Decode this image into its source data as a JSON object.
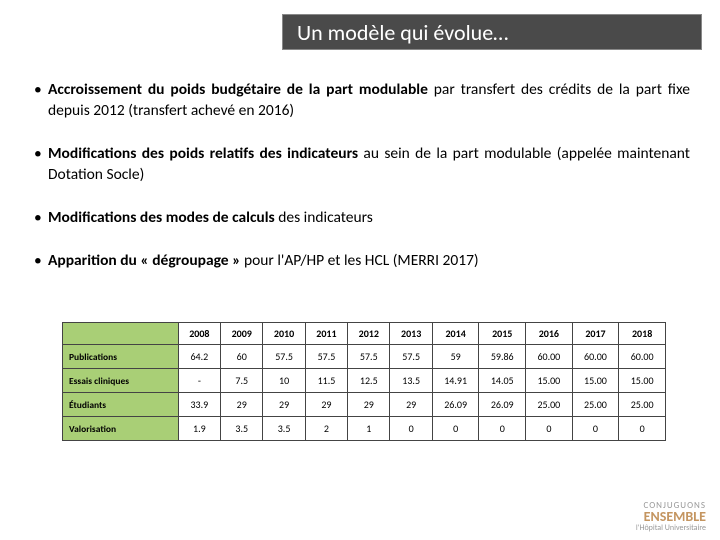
{
  "title": "Un modèle qui évolue…",
  "bullets": [
    {
      "bold": "Accroissement du poids budgétaire de la part modulable",
      "rest": " par transfert des crédits de la part fixe depuis 2012 (transfert achevé en 2016)"
    },
    {
      "bold": "Modifications des poids relatifs des indicateurs",
      "rest": " au sein de la part modulable (appelée maintenant Dotation Socle)"
    },
    {
      "bold": "Modifications des modes de calculs",
      "rest": " des indicateurs"
    },
    {
      "bold": "Apparition du « dégroupage »",
      "rest": " pour l'AP/HP et les HCL (MERRI 2017)"
    }
  ],
  "table": {
    "years": [
      "2008",
      "2009",
      "2010",
      "2011",
      "2012",
      "2013",
      "2014",
      "2015",
      "2016",
      "2017",
      "2018"
    ],
    "rows": [
      {
        "label": "Publications",
        "cells": [
          "64.2",
          "60",
          "57.5",
          "57.5",
          "57.5",
          "57.5",
          "59",
          "59.86",
          "60.00",
          "60.00",
          "60.00"
        ]
      },
      {
        "label": "Essais cliniques",
        "cells": [
          "-",
          "7.5",
          "10",
          "11.5",
          "12.5",
          "13.5",
          "14.91",
          "14.05",
          "15.00",
          "15.00",
          "15.00"
        ]
      },
      {
        "label": "Étudiants",
        "cells": [
          "33.9",
          "29",
          "29",
          "29",
          "29",
          "29",
          "26.09",
          "26.09",
          "25.00",
          "25.00",
          "25.00"
        ]
      },
      {
        "label": "Valorisation",
        "cells": [
          "1.9",
          "3.5",
          "3.5",
          "2",
          "1",
          "0",
          "0",
          "0",
          "0",
          "0",
          "0"
        ]
      }
    ],
    "colors": {
      "header_bg": "#a9cf76",
      "border": "#444444"
    }
  },
  "logo": {
    "l1": "CONJUGUONS",
    "l2": "ENSEMBLE",
    "l3": "l'Hôpital Universitaire"
  }
}
